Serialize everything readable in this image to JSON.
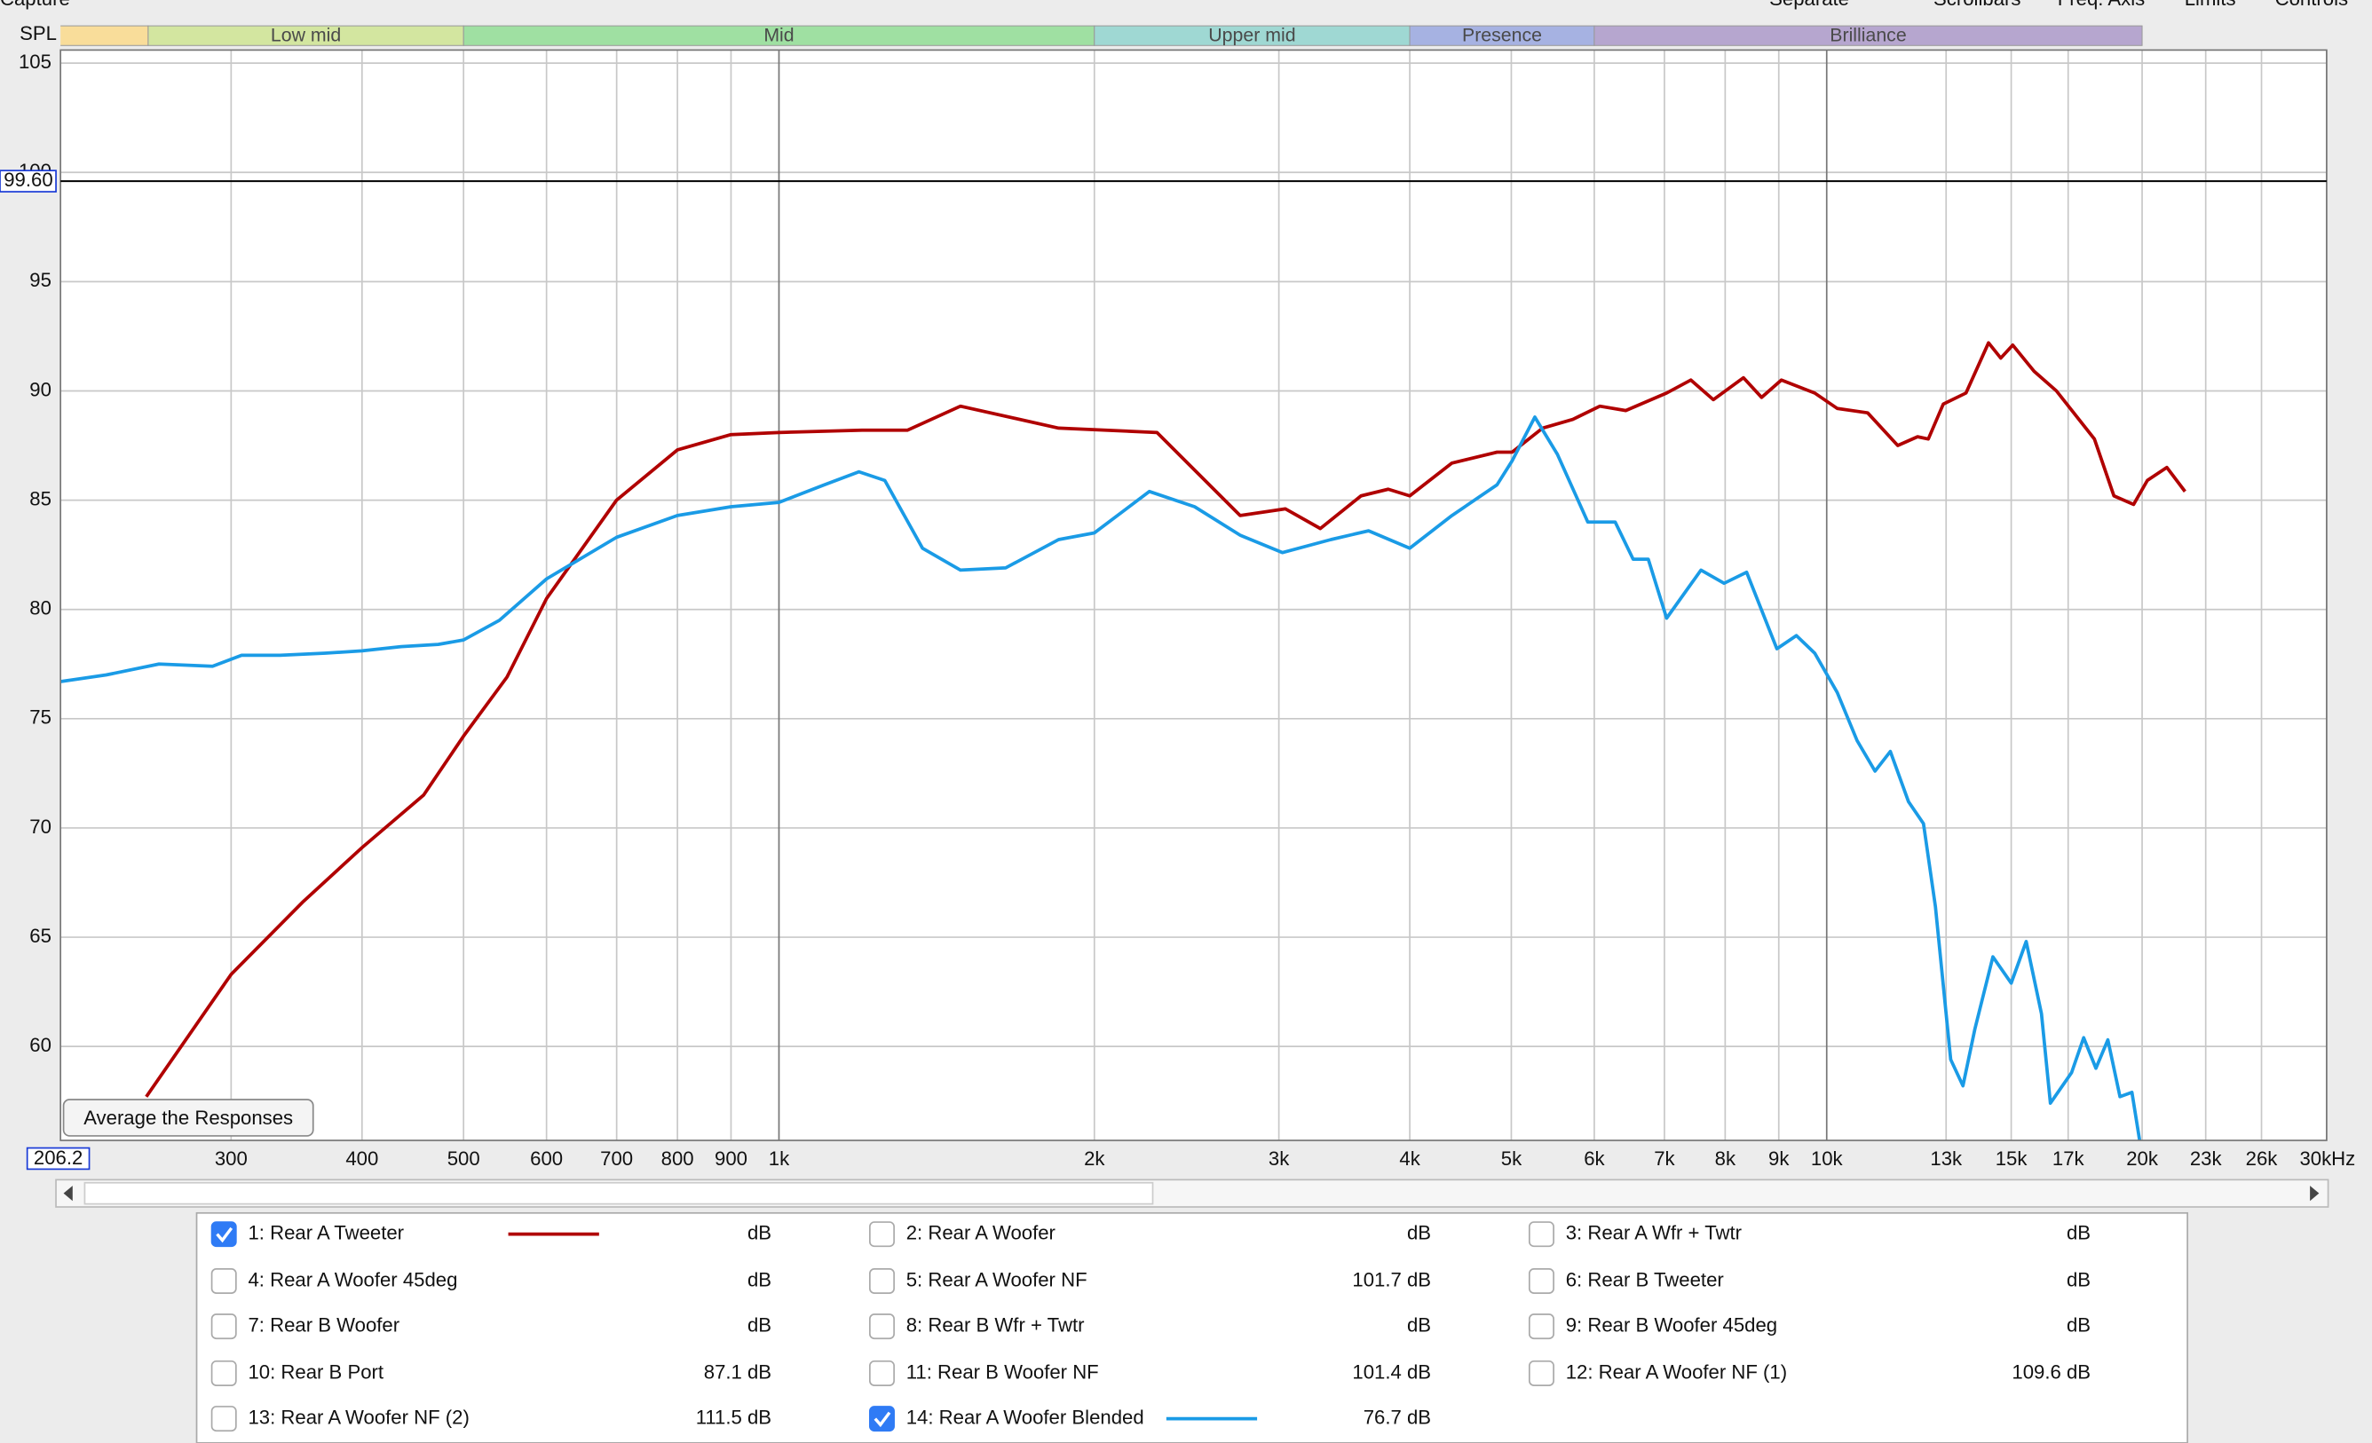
{
  "toolbar": [
    "Capture",
    "Separate",
    "Scrollbars",
    "Freq. Axis",
    "Limits",
    "Controls"
  ],
  "button": "Average the Responses",
  "chart_data": {
    "type": "line",
    "y_label": "SPL",
    "xscale": "log",
    "xlim": [
      206.2,
      30000
    ],
    "ylim": [
      55.7,
      105.6
    ],
    "yticks": [
      60,
      65,
      70,
      75,
      80,
      85,
      90,
      95,
      100,
      105
    ],
    "xticks": [
      300,
      400,
      500,
      600,
      700,
      800,
      900,
      {
        "value": 1000,
        "label": "1k"
      },
      {
        "value": 2000,
        "label": "2k"
      },
      {
        "value": 3000,
        "label": "3k"
      },
      {
        "value": 4000,
        "label": "4k"
      },
      {
        "value": 5000,
        "label": "5k"
      },
      {
        "value": 6000,
        "label": "6k"
      },
      {
        "value": 7000,
        "label": "7k"
      },
      {
        "value": 8000,
        "label": "8k"
      },
      {
        "value": 9000,
        "label": "9k"
      },
      {
        "value": 10000,
        "label": "10k"
      },
      {
        "value": 13000,
        "label": "13k",
        "muted": true
      },
      {
        "value": 15000,
        "label": "15k",
        "muted": true
      },
      {
        "value": 17000,
        "label": "17k",
        "muted": true
      },
      {
        "value": 20000,
        "label": "20k"
      },
      {
        "value": 23000,
        "label": "23k",
        "muted": true
      },
      {
        "value": 26000,
        "label": "26k",
        "muted": true
      },
      {
        "value": 30000,
        "label": "30kHz"
      }
    ],
    "grid": true,
    "cursor": {
      "x": 206.2,
      "y": {
        "value": 99.6,
        "label": "99.60"
      }
    },
    "bands": [
      {
        "from": 60,
        "to": 250,
        "color": "#f9dd9a"
      },
      {
        "name": "Low mid",
        "from": 250,
        "to": 500,
        "color": "#d3e6a0"
      },
      {
        "name": "Mid",
        "from": 500,
        "to": 2000,
        "color": "#9fe0a2"
      },
      {
        "name": "Upper mid",
        "from": 2000,
        "to": 4000,
        "color": "#9fd8d3"
      },
      {
        "name": "Presence",
        "from": 4000,
        "to": 6000,
        "color": "#a6b2e2"
      },
      {
        "name": "Brilliance",
        "from": 6000,
        "to": 20000,
        "color": "#b6a6cf"
      }
    ],
    "series": [
      {
        "name": "1: Rear A Tweeter",
        "color": "#b00000",
        "checked": true,
        "reading": "dB",
        "x": [
          249,
          300,
          351,
          400,
          458,
          500,
          550,
          600,
          700,
          800,
          900,
          1000,
          1200,
          1326,
          1490,
          1849,
          2295,
          2755,
          3043,
          3286,
          3594,
          3815,
          4000,
          4388,
          4846,
          5010,
          5355,
          5723,
          6075,
          6430,
          7033,
          7417,
          7795,
          8327,
          8667,
          9052,
          9739,
          10234,
          10940,
          11690,
          12210,
          12500,
          12920,
          13580,
          14270,
          14660,
          15050,
          15770,
          16570,
          18010,
          18800,
          19630,
          20230,
          21120,
          21980
        ],
        "values": [
          57.7,
          63.3,
          66.6,
          69.1,
          71.5,
          74.2,
          76.9,
          80.5,
          85.0,
          87.3,
          88.0,
          88.1,
          88.2,
          88.2,
          89.3,
          88.3,
          88.1,
          84.3,
          84.6,
          83.7,
          85.2,
          85.5,
          85.2,
          86.7,
          87.2,
          87.2,
          88.3,
          88.7,
          89.3,
          89.1,
          89.9,
          90.5,
          89.6,
          90.6,
          89.7,
          90.5,
          89.9,
          89.2,
          89.0,
          87.5,
          87.9,
          87.8,
          89.4,
          89.9,
          92.2,
          91.5,
          92.1,
          90.9,
          90.0,
          87.8,
          85.2,
          84.8,
          85.9,
          86.5,
          85.4
        ]
      },
      {
        "name": "2: Rear A Woofer",
        "color": "#1e6b2e",
        "checked": false,
        "reading": "dB"
      },
      {
        "name": "3: Rear A Wfr + Twtr",
        "color": "#3a5fc8",
        "checked": false,
        "reading": "dB"
      },
      {
        "name": "4: Rear A Woofer 45deg",
        "color": "#e07a10",
        "checked": false,
        "reading": "dB"
      },
      {
        "name": "5: Rear A Woofer NF",
        "color": "#1a8a1a",
        "checked": false,
        "reading": {
          "value": 101.7,
          "label": "101.7 dB"
        }
      },
      {
        "name": "6: Rear B Tweeter",
        "color": "#2070c0",
        "checked": false,
        "reading": "dB"
      },
      {
        "name": "7: Rear B Woofer",
        "color": "#8b4000",
        "checked": false,
        "reading": "dB"
      },
      {
        "name": "8: Rear B Wfr + Twtr",
        "color": "#1a6e6e",
        "checked": false,
        "reading": "dB"
      },
      {
        "name": "9: Rear B Woofer 45deg",
        "color": "#7a28b0",
        "checked": false,
        "reading": "dB"
      },
      {
        "name": "10: Rear B Port",
        "color": "#9a1aa8",
        "checked": false,
        "reading": {
          "value": 87.1,
          "label": "87.1 dB"
        }
      },
      {
        "name": "11: Rear B Woofer NF",
        "color": "#b00020",
        "checked": false,
        "reading": {
          "value": 101.4,
          "label": "101.4 dB"
        }
      },
      {
        "name": "12: Rear A Woofer NF (1)",
        "color": "#1a5e3a",
        "checked": false,
        "reading": {
          "value": 109.6,
          "label": "109.6 dB"
        }
      },
      {
        "name": "13: Rear A Woofer NF (2)",
        "color": "#3a3ab8",
        "checked": false,
        "reading": {
          "value": 111.5,
          "label": "111.5 dB"
        }
      },
      {
        "name": "14: Rear A Woofer Blended",
        "color": "#1a9be6",
        "checked": true,
        "reading": {
          "value": 76.7,
          "label": "76.7 dB"
        },
        "x": [
          206.2,
          228,
          256,
          288,
          307,
          334,
          369,
          400,
          436,
          473,
          500,
          541,
          600,
          700,
          800,
          900,
          1000,
          1105,
          1192,
          1262,
          1371,
          1490,
          1646,
          1849,
          2000,
          2257,
          2493,
          2755,
          3023,
          3364,
          3654,
          4000,
          4388,
          4846,
          5010,
          5266,
          5533,
          5915,
          6281,
          6536,
          6756,
          7033,
          7586,
          7980,
          8385,
          8963,
          9357,
          9739,
          10234,
          10690,
          11120,
          11500,
          11970,
          12370,
          12700,
          13130,
          13490,
          13850,
          14410,
          15000,
          15500,
          16030,
          16350,
          17130,
          17590,
          18070,
          18550,
          19050,
          19560,
          19890
        ],
        "values": [
          76.7,
          77.0,
          77.5,
          77.4,
          77.9,
          77.9,
          78.0,
          78.1,
          78.3,
          78.4,
          78.6,
          79.5,
          81.4,
          83.3,
          84.3,
          84.7,
          84.9,
          85.7,
          86.3,
          85.9,
          82.8,
          81.8,
          81.9,
          83.2,
          83.5,
          85.4,
          84.7,
          83.4,
          82.6,
          83.2,
          83.6,
          82.8,
          84.3,
          85.7,
          86.8,
          88.8,
          87.1,
          84.0,
          84.0,
          82.3,
          82.3,
          79.6,
          81.8,
          81.2,
          81.7,
          78.2,
          78.8,
          78.0,
          76.2,
          74.0,
          72.6,
          73.5,
          71.2,
          70.2,
          66.4,
          59.4,
          58.2,
          60.8,
          64.1,
          62.9,
          64.8,
          61.5,
          57.4,
          58.8,
          60.4,
          59.0,
          60.3,
          57.7,
          57.9,
          55.7
        ]
      }
    ]
  }
}
